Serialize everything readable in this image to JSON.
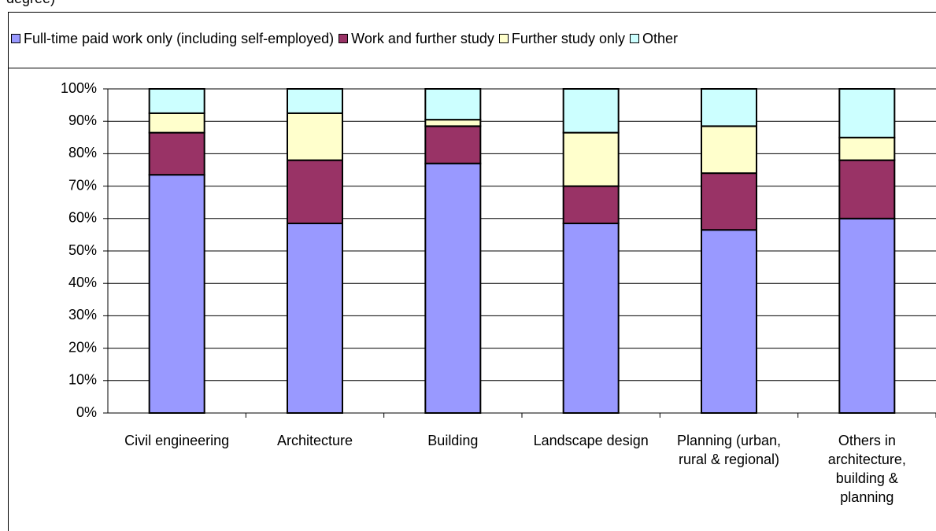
{
  "chart_data": {
    "type": "stacked_bar",
    "title": "degree)",
    "categories": [
      "Civil engineering",
      "Architecture",
      "Building",
      "Landscape design",
      "Planning (urban, rural & regional)",
      "Others in architecture, building & planning"
    ],
    "series": [
      {
        "name": "Full-time paid work only (including self-employed)",
        "color": "#9999ff",
        "values": [
          73.5,
          58.5,
          77,
          58.5,
          56.5,
          60
        ]
      },
      {
        "name": "Work and further study",
        "color": "#993366",
        "values": [
          13,
          19.5,
          11.5,
          11.5,
          17.5,
          18
        ]
      },
      {
        "name": "Further study only",
        "color": "#ffffcc",
        "values": [
          6,
          14.5,
          2,
          16.5,
          14.5,
          7
        ]
      },
      {
        "name": "Other",
        "color": "#ccffff",
        "values": [
          7.5,
          7.5,
          9.5,
          13.5,
          11.5,
          15
        ]
      }
    ],
    "ylim": [
      0,
      100
    ],
    "yticks": [
      {
        "value": 0,
        "label": "0%"
      },
      {
        "value": 10,
        "label": "10%"
      },
      {
        "value": 20,
        "label": "20%"
      },
      {
        "value": 30,
        "label": "30%"
      },
      {
        "value": 40,
        "label": "40%"
      },
      {
        "value": 50,
        "label": "50%"
      },
      {
        "value": 60,
        "label": "60%"
      },
      {
        "value": 70,
        "label": "70%"
      },
      {
        "value": 80,
        "label": "80%"
      },
      {
        "value": 90,
        "label": "90%"
      },
      {
        "value": 100,
        "label": "100%"
      }
    ],
    "grid": true
  }
}
